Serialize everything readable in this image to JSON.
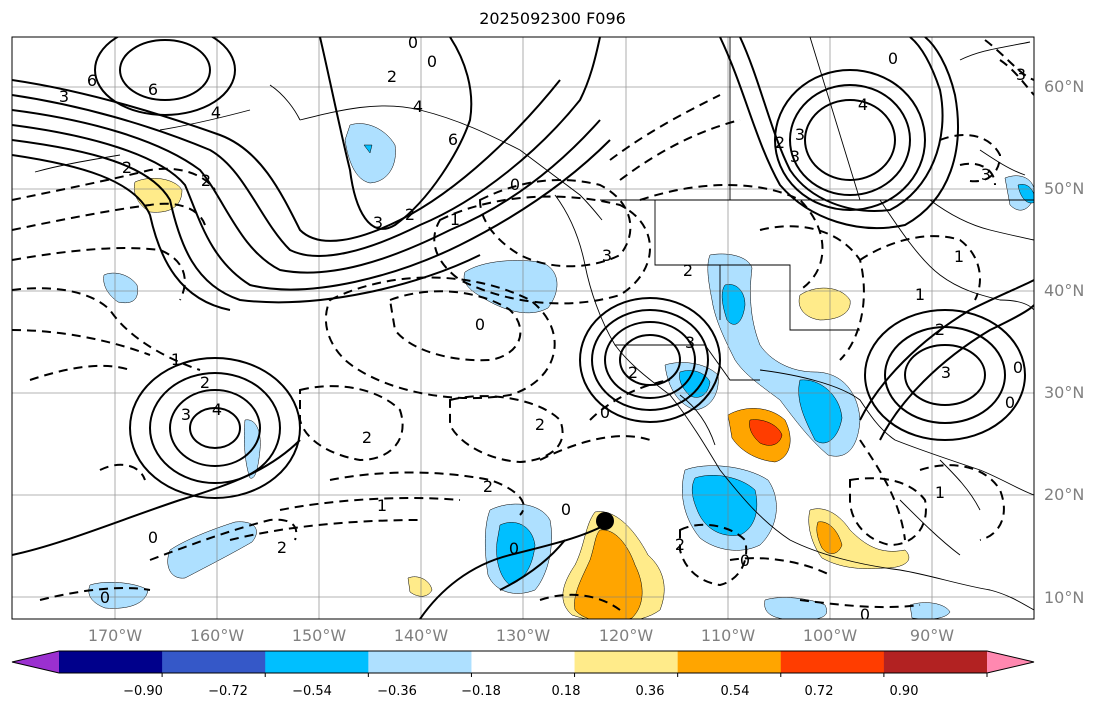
{
  "title": "2025092300 F096",
  "lat_labels": [
    "60°N",
    "50°N",
    "40°N",
    "30°N",
    "20°N",
    "10°N"
  ],
  "lon_labels": [
    "170°W",
    "160°W",
    "150°W",
    "140°W",
    "130°W",
    "120°W",
    "110°W",
    "100°W",
    "90°W"
  ],
  "colorbar": {
    "colors": [
      "#9b30d0",
      "#00008b",
      "#3558c8",
      "#00bfff",
      "#aee0ff",
      "#ffffff",
      "#ffeb8a",
      "#ffa500",
      "#ff3d00",
      "#b22222",
      "#ff88b0"
    ],
    "tick_labels": [
      "−0.90",
      "−0.72",
      "−0.54",
      "−0.36",
      "−0.18",
      "0.18",
      "0.36",
      "0.54",
      "0.72",
      "0.90"
    ]
  },
  "contour_labels": [
    {
      "text": "6"
    },
    {
      "text": "6"
    },
    {
      "text": "4"
    },
    {
      "text": "3"
    },
    {
      "text": "2"
    },
    {
      "text": "2"
    },
    {
      "text": "0"
    },
    {
      "text": "0"
    },
    {
      "text": "4"
    },
    {
      "text": "6"
    },
    {
      "text": "2"
    },
    {
      "text": "4"
    },
    {
      "text": "3"
    },
    {
      "text": "2"
    },
    {
      "text": "3"
    },
    {
      "text": "3"
    },
    {
      "text": "2"
    },
    {
      "text": "1"
    },
    {
      "text": "0"
    },
    {
      "text": "3"
    },
    {
      "text": "2"
    },
    {
      "text": "0"
    },
    {
      "text": "3"
    },
    {
      "text": "2"
    },
    {
      "text": "3"
    },
    {
      "text": "2"
    },
    {
      "text": "4"
    },
    {
      "text": "2"
    },
    {
      "text": "1"
    },
    {
      "text": "0"
    },
    {
      "text": "2"
    },
    {
      "text": "2"
    },
    {
      "text": "0"
    },
    {
      "text": "1"
    },
    {
      "text": "0"
    },
    {
      "text": "0"
    },
    {
      "text": "2"
    },
    {
      "text": "0"
    },
    {
      "text": "0"
    },
    {
      "text": "3"
    },
    {
      "text": "0"
    },
    {
      "text": "1"
    },
    {
      "text": "2"
    },
    {
      "text": "1"
    },
    {
      "text": "2"
    },
    {
      "text": "3"
    },
    {
      "text": "0"
    },
    {
      "text": "3"
    },
    {
      "text": "1"
    },
    {
      "text": "0"
    },
    {
      "text": "0"
    }
  ],
  "marker": {
    "name": "storm-center-marker"
  }
}
